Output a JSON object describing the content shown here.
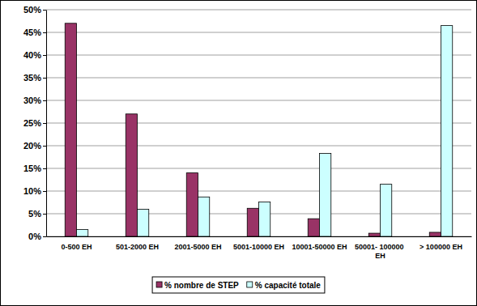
{
  "chart_data": {
    "type": "bar",
    "categories": [
      "0-500 EH",
      "501-2000 EH",
      "2001-5000 EH",
      "5001-10000 EH",
      "10001-50000 EH",
      "50001- 100000 EH",
      "> 100000 EH"
    ],
    "series": [
      {
        "name": "% nombre de STEP",
        "color": "#993366",
        "values": [
          47,
          27,
          14,
          6.2,
          3.9,
          0.7,
          0.9
        ]
      },
      {
        "name": "% capacité totale",
        "color": "#CCFFFF",
        "values": [
          1.5,
          6,
          8.7,
          7.6,
          18.3,
          11.5,
          46.5
        ]
      }
    ],
    "ylim": [
      0,
      50
    ],
    "yticks": [
      {
        "value": 0,
        "label": "0%"
      },
      {
        "value": 5,
        "label": "5%"
      },
      {
        "value": 10,
        "label": "10%"
      },
      {
        "value": 15,
        "label": "15%"
      },
      {
        "value": 20,
        "label": "20%"
      },
      {
        "value": 25,
        "label": "25%"
      },
      {
        "value": 30,
        "label": "30%"
      },
      {
        "value": 35,
        "label": "35%"
      },
      {
        "value": 40,
        "label": "40%"
      },
      {
        "value": 45,
        "label": "45%"
      },
      {
        "value": 50,
        "label": "50%"
      }
    ],
    "grid": true,
    "legend": "bottom"
  }
}
